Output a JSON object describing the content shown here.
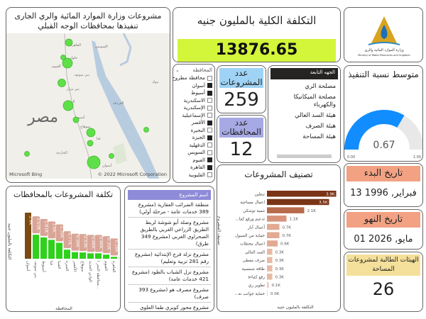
{
  "map": {
    "title": "مشروعات وزارة الموارد المائية والري الجارى تنفيذها بمحافظات الوجه القبلي",
    "country_label": "مصر",
    "cities": [
      "القاهرة",
      "حلوان",
      "الفيوم",
      "بني سويف",
      "بني مزار",
      "المنيا",
      "أسيوط",
      "سوهاج",
      "قنا",
      "الخارجة",
      "أسوان",
      "السويس",
      "الغردقة",
      "تبوك"
    ],
    "bing": "Microsoft Bing",
    "copyright": "© 2022 Microsoft Corporation"
  },
  "total": {
    "title": "التكلفة الكلية بالمليون جنيه",
    "value": "13876.65"
  },
  "logo": {
    "text": "وزارة الموارد المائية والري",
    "sub": "Ministry of Water Resources and Irrigation"
  },
  "gov_slicer": {
    "header": "المحافظة",
    "items": [
      {
        "label": "محافظة مطروح",
        "checked": false
      },
      {
        "label": "أسوان",
        "checked": true
      },
      {
        "label": "أسيوط",
        "checked": true
      },
      {
        "label": "الاسكندرية",
        "checked": false
      },
      {
        "label": "الإسكندرية",
        "checked": false
      },
      {
        "label": "الإسماعيلية",
        "checked": false
      },
      {
        "label": "الأقصر",
        "checked": true
      },
      {
        "label": "البحيرة",
        "checked": false
      },
      {
        "label": "الجيزة",
        "checked": true
      },
      {
        "label": "الدقهلية",
        "checked": false
      },
      {
        "label": "السويس",
        "checked": false
      },
      {
        "label": "الفيوم",
        "checked": true
      },
      {
        "label": "القاهرة",
        "checked": true
      },
      {
        "label": "القليوبية",
        "checked": false
      }
    ]
  },
  "projects_count": {
    "label": "عدد المشروعات",
    "value": "259"
  },
  "gov_count": {
    "label": "عدد المحافظات",
    "value": "12"
  },
  "agency_slicer": {
    "header": "الجهه التابعة",
    "items": [
      "مصلحة الري",
      "مصلحة الميكانيكا والكهرباء",
      "هيئة السد العالي",
      "هيئة الصرف",
      "هيئة المساحة"
    ]
  },
  "gauge": {
    "title": "متوسط نسبة التنفيذ",
    "value": 0.67,
    "value_label": "0.67",
    "min": "0.00",
    "max": "1.00",
    "color": "#118dff"
  },
  "start": {
    "label": "تاريخ البدء",
    "value": "فبراير, 1996 13"
  },
  "end": {
    "label": "تاريخ النهو",
    "value": "مايو, 2026 01"
  },
  "agencies": {
    "label": "الهيئات الطالبة لمشروعات المساحة",
    "value": "26"
  },
  "project_list": {
    "header": "اسم المشروع",
    "items": [
      "منطقة الضرائب العقارية (مشروع 389 خدمات عامة - مرحلة أولي)",
      "مشروع وصلة أبو شوشة لربط الطريق الزراعي الغربي بالطريق الصحراوي الغربي (مشروع 349 طرق)",
      "مشروع نزلة فرج الإبتدائية (مشروع رقم 281 تربية وتعليم)",
      "مشروع نزل الشباب بالطود (مشروع 421 خدمات عامة)",
      "مشروع مصرف هو (مشروع 393 صرف)",
      "مشروع محور كوبري طما العلوي على النيل لربط الطريق الصحراوي الشرقي بالطريق الزراعي الشرقي"
    ]
  },
  "chart_data": [
    {
      "type": "bar",
      "title": "تكلفة المشروعات بالمحافظات",
      "xlabel": "المحافظة",
      "ylabel": "التكلفة بالمليون جنيه",
      "categories": [
        "أسوان",
        "بني سويف",
        "أسيوط",
        "قنا",
        "المنيا",
        "الجيزة",
        "الأقصر",
        "سوهاج",
        "الوادي الجديد",
        "محافظة البحر ا...",
        "الفيوم",
        "القاهرة"
      ],
      "values": [
        3.9,
        2.03,
        1.81,
        1.6,
        1.35,
        0.77,
        0.56,
        0.53,
        0.46,
        0.46,
        0.35,
        0.16
      ],
      "labels": [
        "3.9K",
        "2.03K",
        "1.81K",
        "1.6K",
        "1.35K",
        "0.77K",
        "0.56K",
        "0.53K",
        "0.46K",
        "0.46K",
        "0.35K",
        "0.16K"
      ],
      "colors": {
        "top": "#7a4a12",
        "other": "#2fd11c"
      }
    },
    {
      "type": "bar",
      "orientation": "horizontal",
      "title": "تصنيف المشروعات",
      "xlabel": "التكلفة بالمليون جنيه",
      "ylabel": "تصنيف المشروع",
      "categories": [
        "تبطين",
        "اعمال مساحية",
        "تنمية توشكي",
        "...تدعيم ورفع كفا",
        "أعمال آبار",
        "حماية من السيول",
        "اعمال محطات",
        "السد العالي",
        "صرف مغطى",
        "طاقة شمسية",
        "رفع كفاءة",
        "تطوير ري",
        "...حماية جوانب نه"
      ],
      "values": [
        3.9,
        3.5,
        2.1,
        1.1,
        0.7,
        0.7,
        0.6,
        0.3,
        0.3,
        0.3,
        0.3,
        0.1,
        0.0
      ],
      "labels": [
        "3.9K",
        "3.5K",
        "2.1K",
        "1.1K",
        "0.7K",
        "0.7K",
        "0.6K",
        "0.3K",
        "0.3K",
        "0.3K",
        "0.3K",
        "0.1K",
        "0.0K"
      ]
    }
  ]
}
